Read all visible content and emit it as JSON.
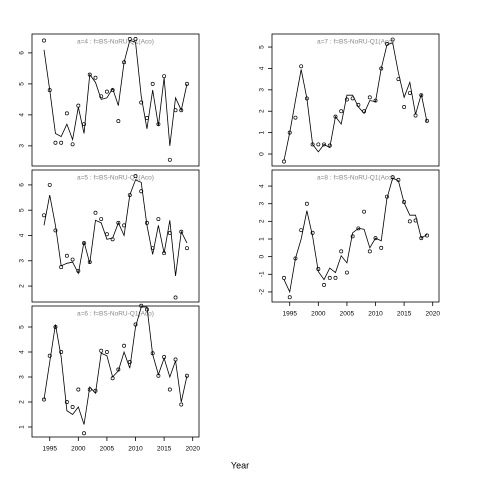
{
  "xlabel": "Year",
  "chart_data": [
    {
      "type": "line",
      "title": "a=4 : f=BS-NoRU-Q1(Aco)",
      "x": [
        1994,
        1995,
        1996,
        1997,
        1998,
        1999,
        2000,
        2001,
        2002,
        2003,
        2004,
        2005,
        2006,
        2007,
        2008,
        2009,
        2010,
        2011,
        2012,
        2013,
        2014,
        2015,
        2016,
        2017,
        2018,
        2019
      ],
      "xlim": [
        1991.9,
        2021.1
      ],
      "ylim": [
        2.35,
        6.61
      ],
      "yticks": [
        3,
        4,
        5,
        6
      ],
      "series": [
        {
          "color": "#000000",
          "marker": "circle",
          "values": [
            6.4,
            4.8,
            3.1,
            3.1,
            4.05,
            3.05,
            4.3,
            3.7,
            5.3,
            5.2,
            4.6,
            4.75,
            4.8,
            3.8,
            5.7,
            6.45,
            6.45,
            4.4,
            3.9,
            5.0,
            3.7,
            5.25,
            2.55,
            4.15,
            4.15,
            5.0
          ]
        },
        {
          "color": "#000000",
          "values": [
            6.1,
            4.8,
            3.4,
            3.3,
            3.7,
            3.2,
            4.25,
            3.4,
            5.3,
            5.05,
            4.5,
            4.55,
            4.85,
            4.3,
            5.7,
            6.4,
            6.35,
            4.6,
            3.55,
            4.8,
            3.65,
            5.2,
            3.0,
            4.55,
            4.15,
            5.0
          ]
        }
      ]
    },
    {
      "type": "line",
      "title": "a=5 : f=BS-NoRU-Q1(Aco)",
      "x": [
        1994,
        1995,
        1996,
        1997,
        1998,
        1999,
        2000,
        2001,
        2002,
        2003,
        2004,
        2005,
        2006,
        2007,
        2008,
        2009,
        2010,
        2011,
        2012,
        2013,
        2014,
        2015,
        2016,
        2017,
        2018,
        2019
      ],
      "xlim": [
        1991.9,
        2021.1
      ],
      "ylim": [
        1.37,
        6.59
      ],
      "yticks": [
        2,
        3,
        4,
        5,
        6
      ],
      "series": [
        {
          "color": "#000000",
          "marker": "circle",
          "values": [
            4.8,
            6.0,
            4.2,
            2.75,
            3.2,
            3.05,
            2.6,
            3.7,
            2.95,
            4.9,
            4.65,
            4.05,
            3.85,
            4.5,
            4.4,
            5.6,
            6.35,
            5.75,
            4.5,
            3.5,
            4.65,
            3.3,
            4.1,
            1.55,
            4.15,
            3.5
          ]
        },
        {
          "color": "#000000",
          "values": [
            4.4,
            5.6,
            4.4,
            2.8,
            2.9,
            2.95,
            2.5,
            3.75,
            2.9,
            4.6,
            4.5,
            3.85,
            3.9,
            4.5,
            4.0,
            5.6,
            6.2,
            6.1,
            4.4,
            3.25,
            4.4,
            3.3,
            4.6,
            2.4,
            4.15,
            3.7
          ]
        }
      ]
    },
    {
      "type": "line",
      "title": "a=6 : f=BS-NoRU-Q1(Aco)",
      "x": [
        1994,
        1995,
        1996,
        1997,
        1998,
        1999,
        2000,
        2001,
        2002,
        2003,
        2004,
        2005,
        2006,
        2007,
        2008,
        2009,
        2010,
        2011,
        2012,
        2013,
        2014,
        2015,
        2016,
        2017,
        2018,
        2019
      ],
      "xlim": [
        1991.9,
        2021.1
      ],
      "ylim": [
        0.6,
        5.84
      ],
      "yticks": [
        1,
        2,
        3,
        4,
        5
      ],
      "xticks": [
        1995,
        2000,
        2005,
        2010,
        2015,
        2020
      ],
      "series": [
        {
          "color": "#000000",
          "marker": "circle",
          "values": [
            2.1,
            3.85,
            5.0,
            4.0,
            2.0,
            1.8,
            2.5,
            0.75,
            2.5,
            2.45,
            4.05,
            4.0,
            2.95,
            3.3,
            4.25,
            3.6,
            5.1,
            5.85,
            5.7,
            3.95,
            3.05,
            3.8,
            2.5,
            3.7,
            1.9,
            3.05
          ]
        },
        {
          "color": "#000000",
          "values": [
            2.1,
            3.6,
            5.1,
            3.8,
            1.65,
            1.5,
            1.8,
            1.1,
            2.6,
            2.35,
            3.95,
            3.85,
            3.0,
            3.25,
            4.0,
            3.35,
            5.0,
            5.8,
            5.8,
            3.9,
            3.1,
            3.75,
            3.0,
            3.65,
            2.0,
            3.05
          ]
        }
      ]
    },
    {
      "type": "line",
      "title": "a=7 : f=BS-NoRU-Q1(Aco)",
      "x": [
        1994,
        1995,
        1996,
        1997,
        1998,
        1999,
        2000,
        2001,
        2002,
        2003,
        2004,
        2005,
        2006,
        2007,
        2008,
        2009,
        2010,
        2011,
        2012,
        2013,
        2014,
        2015,
        2016,
        2017,
        2018,
        2019
      ],
      "xlim": [
        1991.9,
        2021.1
      ],
      "ylim": [
        -0.56,
        5.61
      ],
      "yticks": [
        0,
        1,
        2,
        3,
        4,
        5
      ],
      "series": [
        {
          "color": "#000000",
          "marker": "circle",
          "values": [
            -0.35,
            1.0,
            1.7,
            4.1,
            2.6,
            0.45,
            0.45,
            0.45,
            0.4,
            1.75,
            2.0,
            2.55,
            2.6,
            2.3,
            2.0,
            2.65,
            2.5,
            4.0,
            5.15,
            5.35,
            3.5,
            2.2,
            2.85,
            1.8,
            2.75,
            1.55
          ]
        },
        {
          "color": "#000000",
          "values": [
            -0.3,
            1.0,
            2.5,
            3.95,
            2.6,
            0.45,
            0.1,
            0.45,
            0.3,
            1.75,
            1.4,
            2.75,
            2.75,
            2.2,
            1.9,
            2.5,
            2.45,
            4.0,
            5.1,
            5.2,
            3.8,
            2.65,
            3.35,
            1.85,
            2.8,
            1.5
          ]
        }
      ]
    },
    {
      "type": "line",
      "title": "a=8 : f=BS-NoRU-Q1(Aco)",
      "x": [
        1994,
        1995,
        1996,
        1997,
        1998,
        1999,
        2000,
        2001,
        2002,
        2003,
        2004,
        2005,
        2006,
        2007,
        2008,
        2009,
        2010,
        2011,
        2012,
        2013,
        2014,
        2015,
        2016,
        2017,
        2018,
        2019
      ],
      "xlim": [
        1991.9,
        2021.1
      ],
      "ylim": [
        -2.57,
        4.91
      ],
      "yticks": [
        -2,
        -1,
        0,
        1,
        2,
        3,
        4
      ],
      "xticks": [
        1995,
        2000,
        2005,
        2010,
        2015,
        2020
      ],
      "series": [
        {
          "color": "#000000",
          "marker": "circle",
          "values": [
            -1.2,
            -2.3,
            -0.1,
            1.5,
            3.0,
            1.35,
            -0.7,
            -1.6,
            -1.2,
            -1.2,
            0.3,
            -0.9,
            1.15,
            1.6,
            2.55,
            0.3,
            1.05,
            0.5,
            3.4,
            4.5,
            4.35,
            3.1,
            2.0,
            2.05,
            1.05,
            1.2
          ]
        },
        {
          "color": "#000000",
          "values": [
            -1.3,
            -2.0,
            -0.1,
            1.0,
            2.6,
            1.15,
            -0.85,
            -1.3,
            -0.65,
            -0.9,
            0.05,
            -0.35,
            1.35,
            1.6,
            1.55,
            0.5,
            1.05,
            0.9,
            3.3,
            4.45,
            4.3,
            3.05,
            2.35,
            2.35,
            1.05,
            1.25
          ]
        }
      ]
    }
  ]
}
